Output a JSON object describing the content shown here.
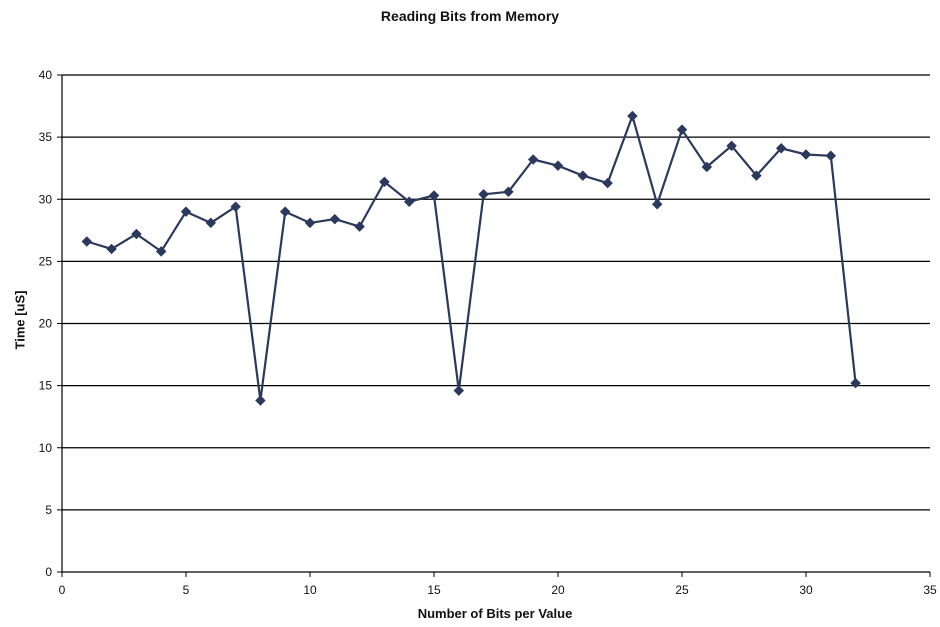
{
  "chart_data": {
    "type": "line",
    "title": "Reading Bits from Memory",
    "xlabel": "Number of Bits per Value",
    "ylabel": "Time [uS]",
    "xlim": [
      0,
      35
    ],
    "ylim": [
      0,
      40
    ],
    "xticks": [
      0,
      5,
      10,
      15,
      20,
      25,
      30,
      35
    ],
    "yticks": [
      0,
      5,
      10,
      15,
      20,
      25,
      30,
      35,
      40
    ],
    "grid": "horizontal",
    "legend": "none",
    "series": [
      {
        "color": "#2b3a5c",
        "marker": "diamond",
        "x": [
          1,
          2,
          3,
          4,
          5,
          6,
          7,
          8,
          9,
          10,
          11,
          12,
          13,
          14,
          15,
          16,
          17,
          18,
          19,
          20,
          21,
          22,
          23,
          24,
          25,
          26,
          27,
          28,
          29,
          30,
          31,
          32
        ],
        "y": [
          26.6,
          26.0,
          27.2,
          25.8,
          29.0,
          28.1,
          29.4,
          13.8,
          29.0,
          28.1,
          28.4,
          27.8,
          31.4,
          29.8,
          30.3,
          14.6,
          30.4,
          30.6,
          33.2,
          32.7,
          31.9,
          31.3,
          36.7,
          29.6,
          35.6,
          32.6,
          34.3,
          31.9,
          34.1,
          33.6,
          33.5,
          15.2
        ]
      }
    ]
  }
}
